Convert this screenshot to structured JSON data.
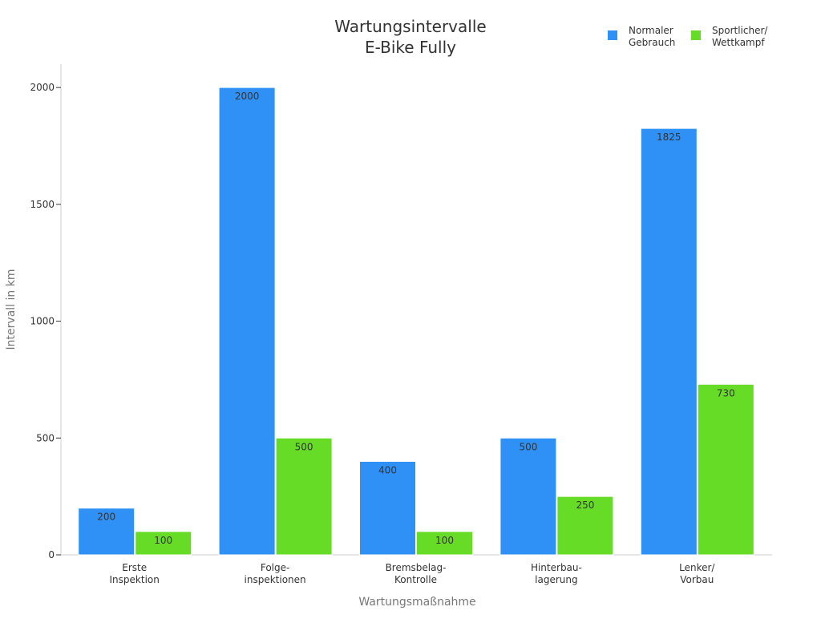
{
  "chart_data": {
    "type": "bar",
    "title": [
      "Wartungsintervalle",
      "E-Bike Fully"
    ],
    "xlabel": "Wartungsmaßnahme",
    "ylabel": "Intervall in km",
    "ylim": [
      0,
      2100
    ],
    "yticks": [
      0,
      500,
      1000,
      1500,
      2000
    ],
    "categories": [
      [
        "Erste",
        "Inspektion"
      ],
      [
        "Folge-",
        "inspektionen"
      ],
      [
        "Bremsbelag-",
        "Kontrolle"
      ],
      [
        "Hinterbau-",
        "lagerung"
      ],
      [
        "Lenker/",
        "Vorbau"
      ]
    ],
    "series": [
      {
        "name": [
          "Normaler",
          "Gebrauch"
        ],
        "color": "#2f91f5",
        "values": [
          200,
          2000,
          400,
          500,
          1825
        ]
      },
      {
        "name": [
          "Sportlicher/",
          "Wettkampf"
        ],
        "color": "#66dc26",
        "values": [
          100,
          500,
          100,
          250,
          730
        ]
      }
    ],
    "legend_position": "top-right",
    "grid": false
  }
}
